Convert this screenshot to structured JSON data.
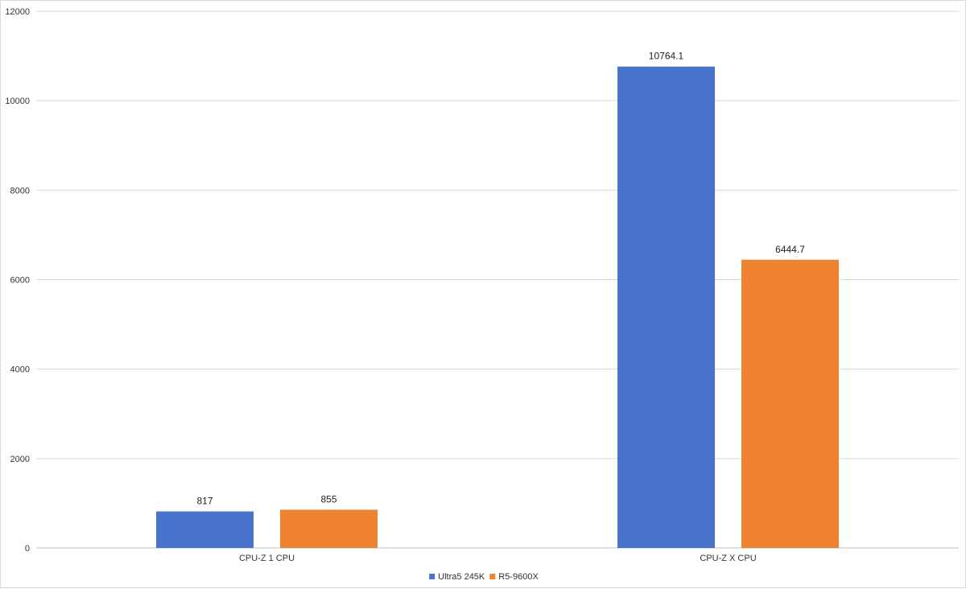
{
  "chart_data": {
    "type": "bar",
    "categories": [
      "CPU-Z 1 CPU",
      "CPU-Z X CPU"
    ],
    "series": [
      {
        "name": "Ultra5 245K",
        "values": [
          817,
          10764.1
        ],
        "labels": [
          "817",
          "10764.1"
        ],
        "color": "#4874CB"
      },
      {
        "name": "R5-9600X",
        "values": [
          855,
          6444.7
        ],
        "labels": [
          "855",
          "6444.7"
        ],
        "color": "#EE822F"
      }
    ],
    "ylim": [
      0,
      12000
    ],
    "yticks": [
      0,
      2000,
      4000,
      6000,
      8000,
      10000,
      12000
    ],
    "ytick_labels": [
      "0",
      "2000",
      "4000",
      "6000",
      "8000",
      "10000",
      "12000"
    ],
    "grid": true,
    "legend_position": "bottom-center",
    "title": "",
    "xlabel": "",
    "ylabel": "",
    "colors": {
      "gridline": "#d9d9d9",
      "axis": "#bfbfbf"
    }
  }
}
